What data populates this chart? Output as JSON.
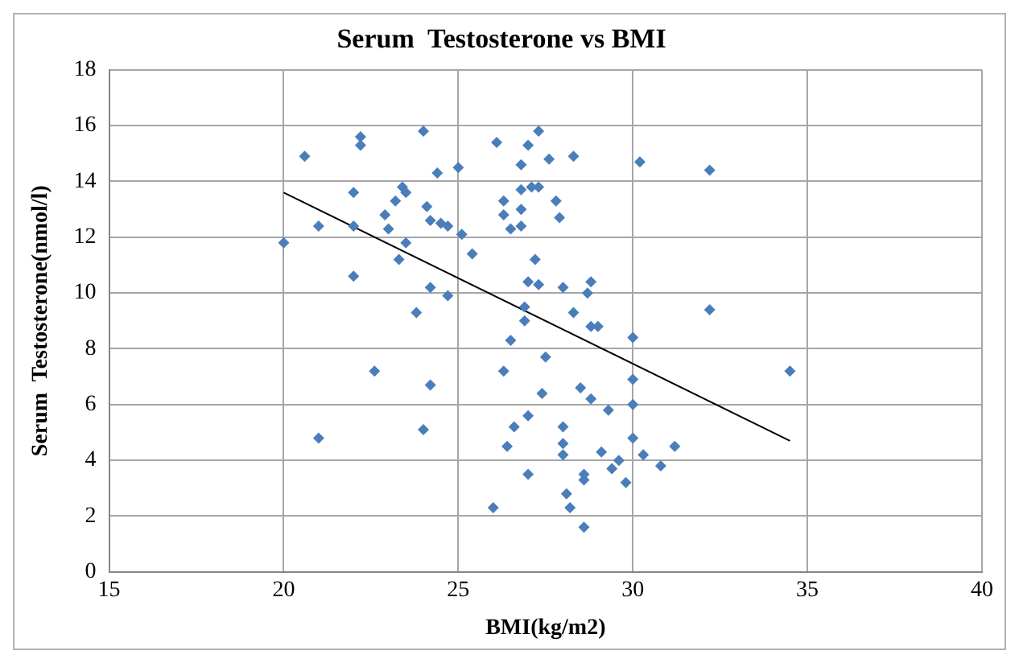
{
  "chart_data": {
    "type": "scatter",
    "title": "Serum  Testosterone vs BMI",
    "xlabel": "BMI(kg/m2)",
    "ylabel": "Serum  Testosterone(nmol/l)",
    "xlim": [
      15,
      40
    ],
    "xticks": [
      15,
      20,
      25,
      30,
      35,
      40
    ],
    "ylim": [
      0,
      18
    ],
    "yticks": [
      0,
      2,
      4,
      6,
      8,
      10,
      12,
      14,
      16,
      18
    ],
    "grid": true,
    "legend": false,
    "marker": "diamond",
    "series": [
      {
        "type": "scatter",
        "color": "#4a7ebb",
        "x": [
          20.0,
          20.6,
          21.0,
          21.0,
          22.2,
          22.2,
          22.0,
          22.0,
          22.0,
          22.6,
          22.9,
          23.0,
          23.2,
          23.3,
          23.4,
          23.5,
          23.5,
          23.8,
          24.0,
          24.0,
          24.1,
          24.2,
          24.2,
          24.2,
          24.4,
          24.5,
          24.7,
          24.7,
          25.0,
          25.1,
          25.4,
          26.0,
          26.1,
          26.3,
          26.3,
          26.3,
          26.4,
          26.5,
          26.5,
          26.6,
          26.8,
          26.8,
          26.8,
          26.8,
          26.9,
          26.9,
          27.0,
          27.0,
          27.0,
          27.0,
          27.1,
          27.2,
          27.3,
          27.3,
          27.3,
          27.4,
          27.5,
          27.6,
          27.8,
          27.9,
          28.0,
          28.0,
          28.0,
          28.0,
          28.1,
          28.2,
          28.3,
          28.5,
          28.6,
          28.6,
          28.6,
          28.7,
          28.8,
          28.8,
          28.8,
          29.0,
          29.1,
          29.3,
          29.4,
          29.6,
          29.8,
          30.0,
          30.0,
          30.0,
          30.0,
          30.2,
          30.3,
          30.8,
          31.2,
          32.2,
          32.2,
          34.5,
          28.3
        ],
        "values": [
          11.8,
          14.9,
          12.4,
          4.8,
          15.6,
          15.3,
          13.6,
          12.4,
          10.6,
          7.2,
          12.8,
          12.3,
          13.3,
          11.2,
          13.8,
          13.6,
          11.8,
          9.3,
          15.8,
          5.1,
          13.1,
          12.6,
          10.2,
          6.7,
          14.3,
          12.5,
          12.4,
          9.9,
          14.5,
          12.1,
          11.4,
          2.3,
          15.4,
          13.3,
          12.8,
          7.2,
          4.5,
          12.3,
          8.3,
          5.2,
          14.6,
          13.7,
          13.0,
          12.4,
          9.5,
          9.0,
          15.3,
          10.4,
          5.6,
          3.5,
          13.8,
          11.2,
          15.8,
          13.8,
          10.3,
          6.4,
          7.7,
          14.8,
          13.3,
          12.7,
          10.2,
          4.6,
          4.2,
          5.2,
          2.8,
          2.3,
          9.3,
          6.6,
          3.5,
          3.3,
          1.6,
          10.0,
          10.4,
          8.8,
          6.2,
          8.8,
          4.3,
          5.8,
          3.7,
          4.0,
          3.2,
          8.4,
          6.9,
          6.0,
          4.8,
          14.7,
          4.2,
          3.8,
          4.5,
          14.4,
          9.4,
          7.2,
          14.9
        ]
      },
      {
        "type": "line",
        "color": "#000000",
        "marker": "none",
        "x": [
          20,
          34.5
        ],
        "values": [
          13.6,
          4.7
        ]
      }
    ]
  }
}
